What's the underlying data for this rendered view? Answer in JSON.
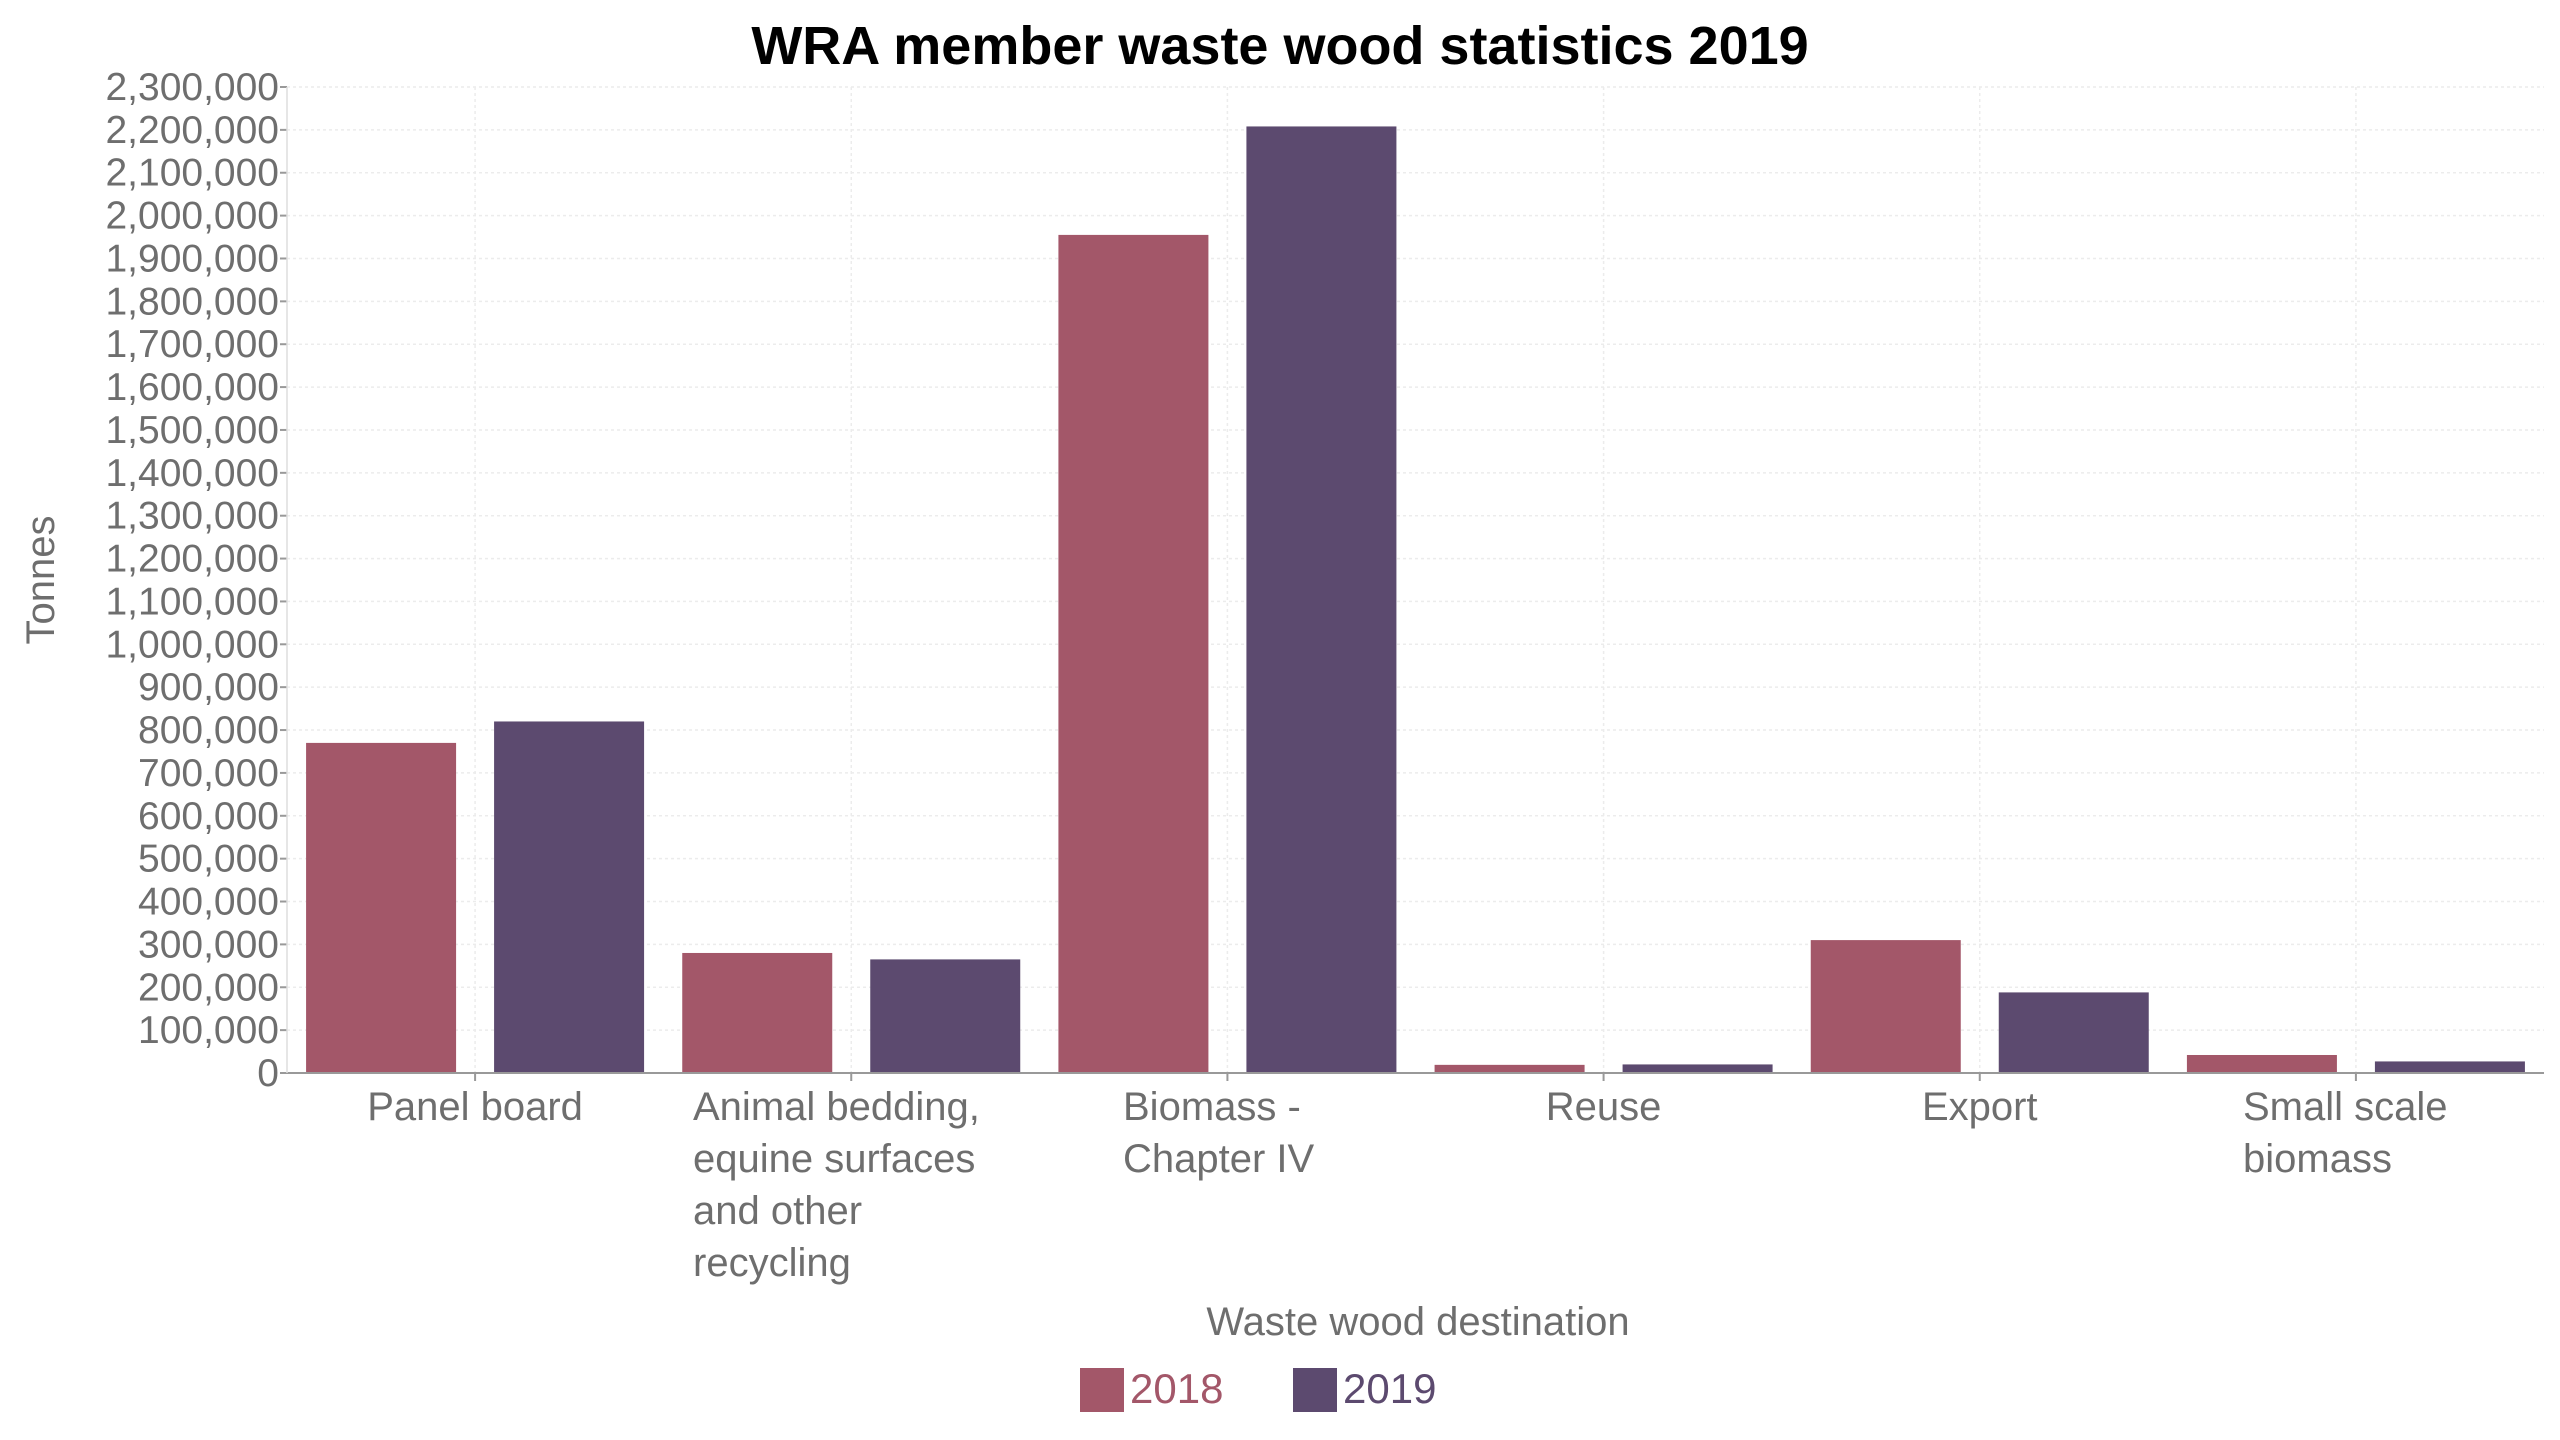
{
  "chart_data": {
    "type": "bar",
    "title": "WRA member waste wood statistics 2019",
    "xlabel": "Waste wood destination",
    "ylabel": "Tonnes",
    "ylim": [
      0,
      2300000
    ],
    "ytick_step": 100000,
    "yticks": [
      "0",
      "100,000",
      "200,000",
      "300,000",
      "400,000",
      "500,000",
      "600,000",
      "700,000",
      "800,000",
      "900,000",
      "1,000,000",
      "1,100,000",
      "1,200,000",
      "1,300,000",
      "1,400,000",
      "1,500,000",
      "1,600,000",
      "1,700,000",
      "1,800,000",
      "1,900,000",
      "2,000,000",
      "2,100,000",
      "2,200,000",
      "2,300,000"
    ],
    "categories": [
      [
        "Panel board"
      ],
      [
        "Animal bedding,",
        "equine surfaces",
        "and other",
        "recycling"
      ],
      [
        "Biomass -",
        "Chapter IV"
      ],
      [
        "Reuse"
      ],
      [
        "Export"
      ],
      [
        "Small scale",
        "biomass"
      ]
    ],
    "series": [
      {
        "name": "2018",
        "color": "#a35769",
        "values": [
          770000,
          280000,
          1955000,
          19000,
          310000,
          42000
        ]
      },
      {
        "name": "2019",
        "color": "#5c4a6f",
        "values": [
          820000,
          265000,
          2208000,
          20000,
          188000,
          27000
        ]
      }
    ],
    "grid": true,
    "legend": "bottom-center"
  }
}
